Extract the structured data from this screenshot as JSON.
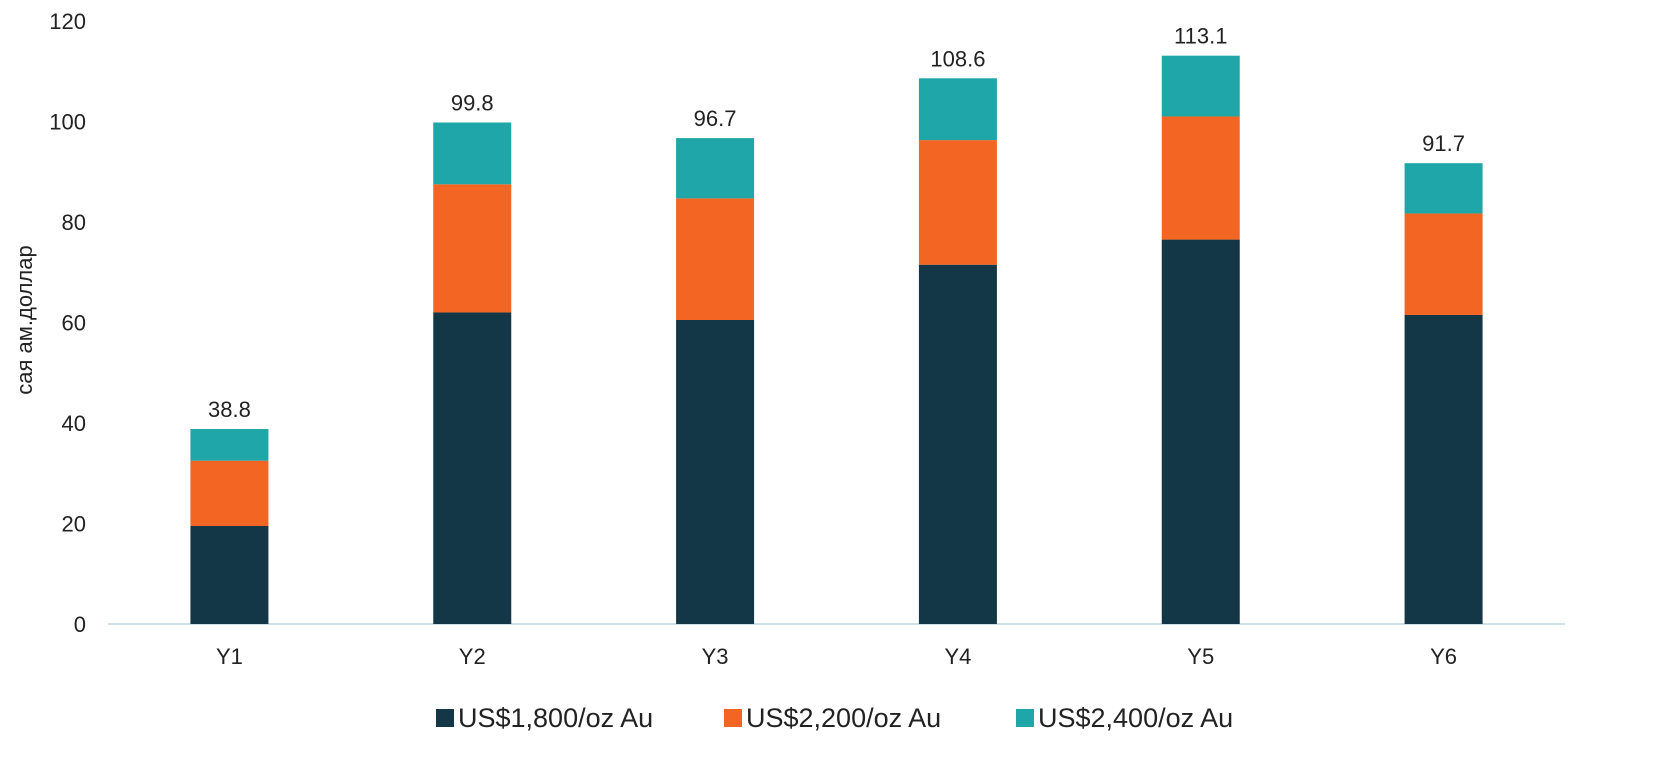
{
  "chart_data": {
    "type": "bar",
    "stacked": true,
    "title": "",
    "xlabel": "",
    "ylabel": "сая ам.доллар",
    "ylim": [
      0,
      120
    ],
    "yticks": [
      0,
      20,
      40,
      60,
      80,
      100,
      120
    ],
    "grid": false,
    "legend_position": "bottom",
    "categories": [
      "Y1",
      "Y2",
      "Y3",
      "Y4",
      "Y5",
      "Y6"
    ],
    "series": [
      {
        "name": "US$1,800/oz Au",
        "color": "#133746",
        "values": [
          19.5,
          62.0,
          60.5,
          71.5,
          76.5,
          61.5
        ]
      },
      {
        "name": "US$2,200/oz Au",
        "color": "#F26522",
        "values": [
          13.0,
          25.5,
          24.2,
          24.8,
          24.5,
          20.2
        ]
      },
      {
        "name": "US$2,400/oz Au",
        "color": "#1FA6A8",
        "values": [
          6.3,
          12.3,
          12.0,
          12.3,
          12.1,
          10.0
        ]
      }
    ],
    "totals": [
      "38.8",
      "99.8",
      "96.7",
      "108.6",
      "113.1",
      "91.7"
    ],
    "colors": {
      "text": "#222222",
      "axis": "#BFD9E2"
    }
  }
}
